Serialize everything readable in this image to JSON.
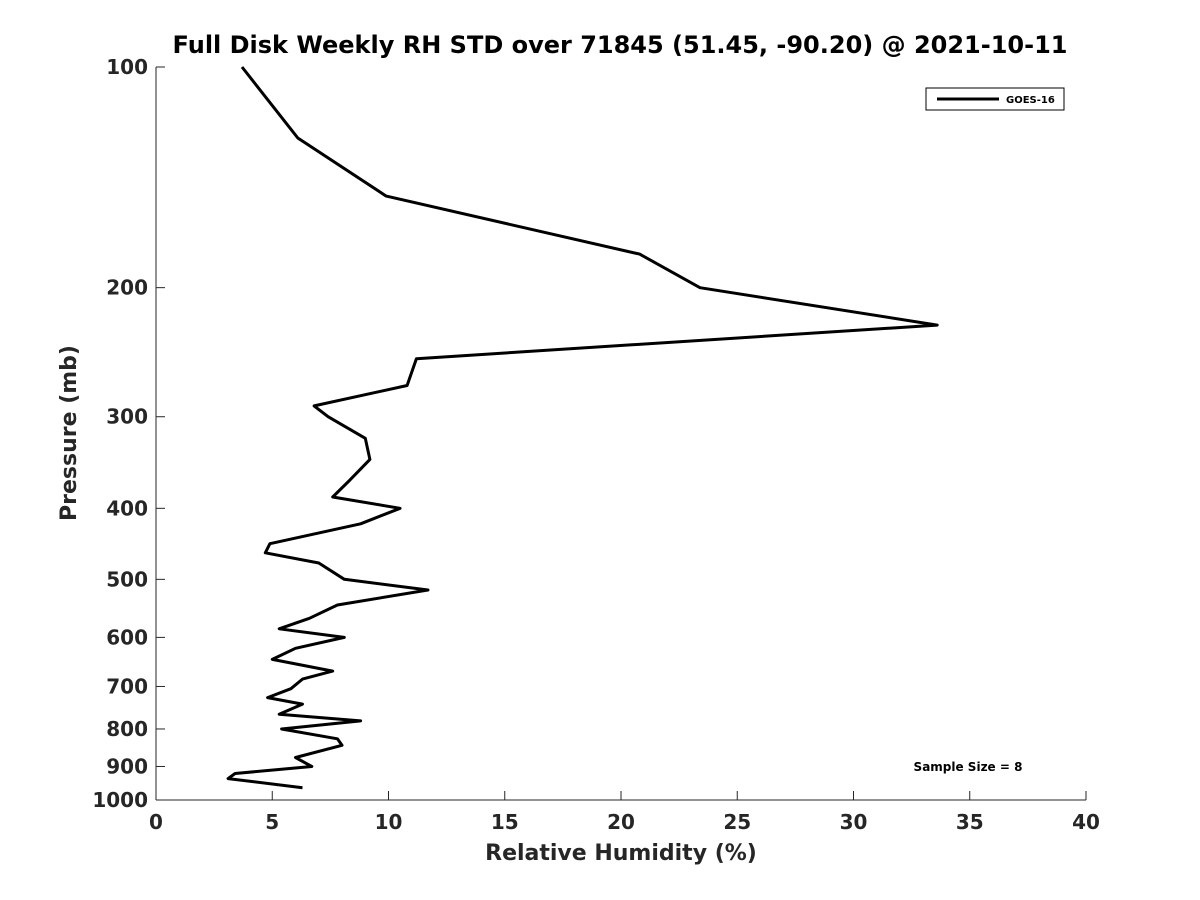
{
  "chart_data": {
    "type": "line",
    "title": "Full Disk Weekly RH STD over 71845 (51.45, -90.20) @ 2021-10-11",
    "xlabel": "Relative Humidity (%)",
    "ylabel": "Pressure (mb)",
    "xlim": [
      0,
      40
    ],
    "ylim": [
      100,
      1000
    ],
    "y_scale": "log",
    "y_reversed": true,
    "x_ticks": [
      0,
      5,
      10,
      15,
      20,
      25,
      30,
      35,
      40
    ],
    "y_ticks": [
      100,
      200,
      300,
      400,
      500,
      600,
      700,
      800,
      900,
      1000
    ],
    "grid": false,
    "legend_position": "top-right",
    "annotation": "Sample Size = 8",
    "series": [
      {
        "name": "GOES-16",
        "color": "#000000",
        "points": [
          [
            3.7,
            100
          ],
          [
            6.1,
            125
          ],
          [
            9.9,
            150
          ],
          [
            20.8,
            180
          ],
          [
            23.4,
            200
          ],
          [
            33.6,
            225
          ],
          [
            11.2,
            250
          ],
          [
            10.8,
            272
          ],
          [
            6.8,
            290
          ],
          [
            7.4,
            300
          ],
          [
            9.0,
            321
          ],
          [
            9.2,
            343
          ],
          [
            8.3,
            367
          ],
          [
            7.6,
            386
          ],
          [
            10.5,
            400
          ],
          [
            8.8,
            420
          ],
          [
            4.9,
            447
          ],
          [
            4.7,
            460
          ],
          [
            7.0,
            475
          ],
          [
            8.1,
            500
          ],
          [
            11.7,
            517
          ],
          [
            7.8,
            542
          ],
          [
            6.6,
            565
          ],
          [
            5.3,
            584
          ],
          [
            8.1,
            600
          ],
          [
            6.0,
            621
          ],
          [
            5.0,
            643
          ],
          [
            7.6,
            667
          ],
          [
            6.3,
            684
          ],
          [
            5.8,
            705
          ],
          [
            4.8,
            725
          ],
          [
            6.3,
            740
          ],
          [
            5.3,
            764
          ],
          [
            8.8,
            780
          ],
          [
            5.4,
            800
          ],
          [
            7.8,
            825
          ],
          [
            8.0,
            842
          ],
          [
            6.0,
            875
          ],
          [
            6.7,
            900
          ],
          [
            3.4,
            920
          ],
          [
            3.1,
            935
          ],
          [
            6.3,
            962
          ]
        ]
      }
    ]
  }
}
